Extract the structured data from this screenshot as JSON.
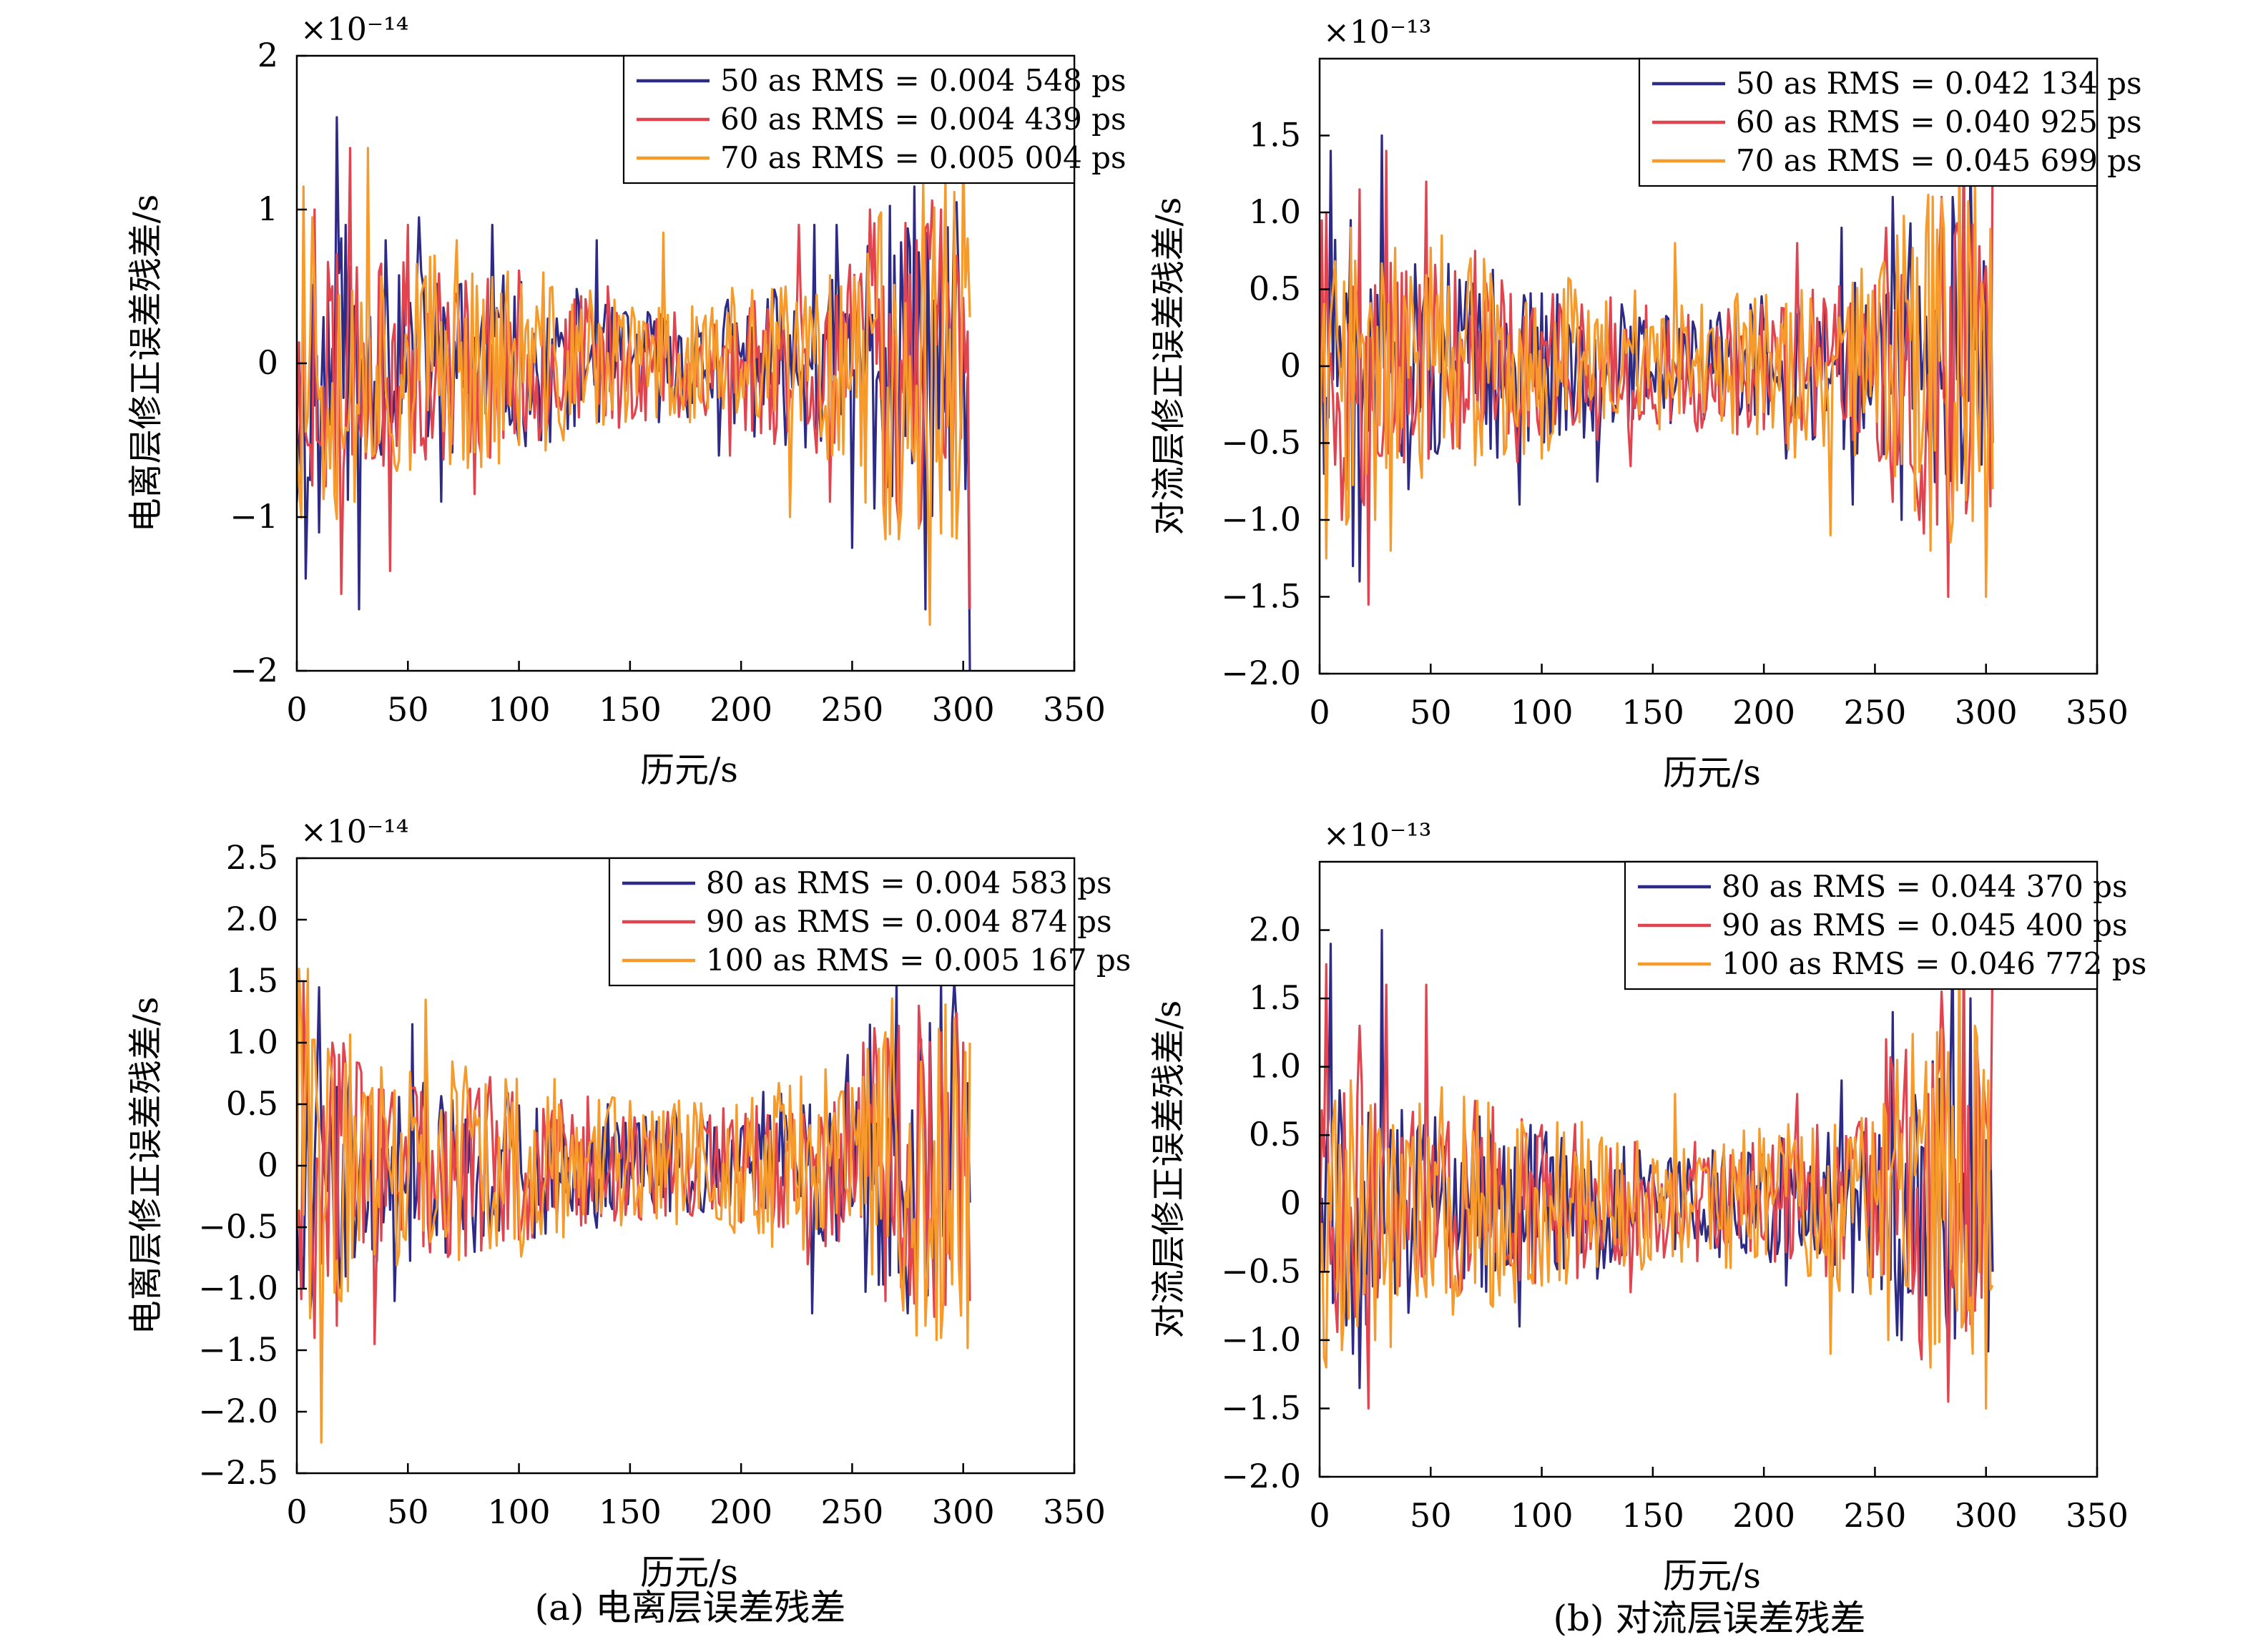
{
  "captions": {
    "a": "(a) 电离层误差残差",
    "b": "(b) 对流层误差残差"
  },
  "colors": {
    "navy": "#2e2b86",
    "red": "#e0444f",
    "orange": "#f59a2b"
  },
  "chart_data": [
    {
      "id": "tl",
      "type": "line",
      "title": "",
      "xlabel": "历元/s",
      "ylabel": "电离层修正误差残差/s",
      "exponent_label": "×10⁻¹⁴",
      "xlim": [
        0,
        350
      ],
      "ylim": [
        -2,
        2
      ],
      "xticks": [
        0,
        50,
        100,
        150,
        200,
        250,
        300,
        350
      ],
      "xtick_labels": [
        "0",
        "50",
        "100",
        "150",
        "200",
        "250",
        "300",
        "350"
      ],
      "yticks": [
        -2,
        -1,
        0,
        1,
        2
      ],
      "ytick_labels": [
        "−2",
        "−1",
        "0",
        "1",
        "2"
      ],
      "legend_position": "top-right",
      "grid": false,
      "series": [
        {
          "name": "50 as RMS = 0.004 548 ps",
          "color": "#2e2b86",
          "seed": 11,
          "x_range": [
            0,
            303
          ],
          "amplitude": 0.3,
          "points": [
            [
              0,
              -0.9
            ],
            [
              4,
              -1.4
            ],
            [
              10,
              -1.1
            ],
            [
              18,
              1.6
            ],
            [
              22,
              0.9
            ],
            [
              28,
              -1.6
            ],
            [
              40,
              0.8
            ],
            [
              55,
              0.95
            ],
            [
              65,
              -0.9
            ],
            [
              88,
              0.9
            ],
            [
              110,
              -0.5
            ],
            [
              135,
              0.8
            ],
            [
              190,
              -0.6
            ],
            [
              233,
              0.9
            ],
            [
              243,
              0.9
            ],
            [
              250,
              -1.2
            ],
            [
              278,
              1.15
            ],
            [
              283,
              -1.6
            ],
            [
              303,
              -2.0
            ]
          ]
        },
        {
          "name": "60 as RMS = 0.004 439 ps",
          "color": "#e0444f",
          "seed": 23,
          "x_range": [
            0,
            303
          ],
          "amplitude": 0.32,
          "points": [
            [
              2,
              -0.8
            ],
            [
              8,
              1.0
            ],
            [
              13,
              -0.8
            ],
            [
              20,
              -1.5
            ],
            [
              24,
              1.4
            ],
            [
              42,
              -1.35
            ],
            [
              50,
              0.9
            ],
            [
              80,
              -0.85
            ],
            [
              140,
              0.5
            ],
            [
              195,
              -0.6
            ],
            [
              226,
              0.9
            ],
            [
              240,
              -0.9
            ],
            [
              258,
              1.0
            ],
            [
              279,
              0.8
            ],
            [
              290,
              1.0
            ],
            [
              303,
              -1.6
            ]
          ]
        },
        {
          "name": "70 as RMS = 0.005 004 ps",
          "color": "#f59a2b",
          "seed": 37,
          "x_range": [
            0,
            303
          ],
          "amplitude": 0.35,
          "points": [
            [
              3,
              1.15
            ],
            [
              7,
              0.95
            ],
            [
              26,
              -0.9
            ],
            [
              32,
              1.4
            ],
            [
              45,
              -0.7
            ],
            [
              72,
              0.8
            ],
            [
              120,
              -0.5
            ],
            [
              165,
              0.85
            ],
            [
              222,
              -1.0
            ],
            [
              245,
              0.5
            ],
            [
              262,
              0.95
            ],
            [
              285,
              -1.7
            ],
            [
              292,
              1.2
            ],
            [
              300,
              1.4
            ],
            [
              303,
              0.3
            ]
          ]
        }
      ]
    },
    {
      "id": "tr",
      "type": "line",
      "title": "",
      "xlabel": "历元/s",
      "ylabel": "对流层修正误差残差/s",
      "exponent_label": "×10⁻¹³",
      "xlim": [
        0,
        350
      ],
      "ylim": [
        -2.0,
        2.0
      ],
      "xticks": [
        0,
        50,
        100,
        150,
        200,
        250,
        300,
        350
      ],
      "xtick_labels": [
        "0",
        "50",
        "100",
        "150",
        "200",
        "250",
        "300",
        "350"
      ],
      "yticks": [
        -2.0,
        -1.5,
        -1.0,
        -0.5,
        0,
        0.5,
        1.0,
        1.5
      ],
      "ytick_labels": [
        "−2.0",
        "−1.5",
        "−1.0",
        "−0.5",
        "0",
        "0.5",
        "1.0",
        "1.5"
      ],
      "legend_position": "top-right",
      "grid": false,
      "series": [
        {
          "name": "50 as RMS = 0.042 134 ps",
          "color": "#2e2b86",
          "seed": 51,
          "x_range": [
            0,
            303
          ],
          "amplitude": 0.3,
          "points": [
            [
              2,
              -0.7
            ],
            [
              5,
              1.4
            ],
            [
              15,
              -1.3
            ],
            [
              18,
              -1.4
            ],
            [
              28,
              1.5
            ],
            [
              40,
              -0.8
            ],
            [
              90,
              -0.9
            ],
            [
              125,
              -0.75
            ],
            [
              210,
              -0.6
            ],
            [
              235,
              0.9
            ],
            [
              240,
              -0.9
            ],
            [
              258,
              1.1
            ],
            [
              262,
              -1.0
            ],
            [
              285,
              1.1
            ],
            [
              293,
              1.35
            ],
            [
              303,
              -0.5
            ]
          ]
        },
        {
          "name": "60 as RMS = 0.040 925 ps",
          "color": "#e0444f",
          "seed": 63,
          "x_range": [
            0,
            303
          ],
          "amplitude": 0.32,
          "points": [
            [
              3,
              1.0
            ],
            [
              10,
              -1.0
            ],
            [
              18,
              1.15
            ],
            [
              22,
              -1.55
            ],
            [
              30,
              1.4
            ],
            [
              48,
              1.2
            ],
            [
              70,
              0.75
            ],
            [
              140,
              -0.65
            ],
            [
              215,
              0.8
            ],
            [
              255,
              0.9
            ],
            [
              270,
              -1.0
            ],
            [
              280,
              1.1
            ],
            [
              283,
              -1.5
            ],
            [
              290,
              1.6
            ],
            [
              303,
              1.4
            ]
          ]
        },
        {
          "name": "70 as RMS = 0.045 699 ps",
          "color": "#f59a2b",
          "seed": 77,
          "x_range": [
            0,
            303
          ],
          "amplitude": 0.35,
          "points": [
            [
              3,
              -1.25
            ],
            [
              14,
              0.9
            ],
            [
              25,
              -1.0
            ],
            [
              32,
              -1.2
            ],
            [
              55,
              0.85
            ],
            [
              100,
              -0.6
            ],
            [
              160,
              0.8
            ],
            [
              230,
              -1.1
            ],
            [
              260,
              0.85
            ],
            [
              275,
              -1.2
            ],
            [
              288,
              1.4
            ],
            [
              295,
              1.2
            ],
            [
              300,
              -1.5
            ],
            [
              303,
              -0.8
            ]
          ]
        }
      ]
    },
    {
      "id": "bl",
      "type": "line",
      "title": "",
      "xlabel": "历元/s",
      "ylabel": "电离层修正误差残差/s",
      "exponent_label": "×10⁻¹⁴",
      "xlim": [
        0,
        350
      ],
      "ylim": [
        -2.5,
        2.5
      ],
      "xticks": [
        0,
        50,
        100,
        150,
        200,
        250,
        300,
        350
      ],
      "xtick_labels": [
        "0",
        "50",
        "100",
        "150",
        "200",
        "250",
        "300",
        "350"
      ],
      "yticks": [
        -2.5,
        -2.0,
        -1.5,
        -1.0,
        -0.5,
        0,
        0.5,
        1.0,
        1.5,
        2.0,
        2.5
      ],
      "ytick_labels": [
        "−2.5",
        "−2.0",
        "−1.5",
        "−1.0",
        "−0.5",
        "0",
        "0.5",
        "1.0",
        "1.5",
        "2.0",
        "2.5"
      ],
      "legend_position": "top-right",
      "grid": false,
      "series": [
        {
          "name": "80 as RMS = 0.004 583 ps",
          "color": "#2e2b86",
          "seed": 91,
          "x_range": [
            0,
            303
          ],
          "amplitude": 0.35,
          "points": [
            [
              2,
              -0.7
            ],
            [
              6,
              -1.2
            ],
            [
              10,
              1.45
            ],
            [
              22,
              -0.9
            ],
            [
              44,
              -1.1
            ],
            [
              52,
              1.15
            ],
            [
              80,
              -0.7
            ],
            [
              140,
              0.5
            ],
            [
              210,
              0.6
            ],
            [
              232,
              -1.2
            ],
            [
              248,
              0.9
            ],
            [
              270,
              1.5
            ],
            [
              275,
              -1.2
            ],
            [
              290,
              1.5
            ],
            [
              296,
              1.5
            ],
            [
              303,
              -0.3
            ]
          ]
        },
        {
          "name": "90 as RMS = 0.004 874 ps",
          "color": "#e0444f",
          "seed": 103,
          "x_range": [
            0,
            303
          ],
          "amplitude": 0.38,
          "points": [
            [
              3,
              1.5
            ],
            [
              8,
              -1.4
            ],
            [
              16,
              1.0
            ],
            [
              18,
              -1.3
            ],
            [
              35,
              -1.45
            ],
            [
              58,
              0.95
            ],
            [
              100,
              -0.6
            ],
            [
              150,
              0.5
            ],
            [
              230,
              -0.8
            ],
            [
              255,
              1.0
            ],
            [
              265,
              -1.1
            ],
            [
              280,
              1.3
            ],
            [
              288,
              -1.2
            ],
            [
              300,
              1.0
            ],
            [
              303,
              -1.1
            ]
          ]
        },
        {
          "name": "100 as RMS = 0.005 167 ps",
          "color": "#f59a2b",
          "seed": 117,
          "x_range": [
            0,
            303
          ],
          "amplitude": 0.42,
          "points": [
            [
              1,
              1.6
            ],
            [
              5,
              1.6
            ],
            [
              11,
              -2.25
            ],
            [
              14,
              0.95
            ],
            [
              38,
              0.8
            ],
            [
              58,
              1.35
            ],
            [
              90,
              -0.65
            ],
            [
              170,
              0.5
            ],
            [
              205,
              0.55
            ],
            [
              262,
              0.95
            ],
            [
              283,
              -1.3
            ],
            [
              290,
              -1.4
            ],
            [
              296,
              1.2
            ],
            [
              303,
              1.0
            ]
          ]
        }
      ]
    },
    {
      "id": "br",
      "type": "line",
      "title": "",
      "xlabel": "历元/s",
      "ylabel": "对流层修正误差残差/s",
      "exponent_label": "×10⁻¹³",
      "xlim": [
        0,
        350
      ],
      "ylim": [
        -2.0,
        2.5
      ],
      "xticks": [
        0,
        50,
        100,
        150,
        200,
        250,
        300,
        350
      ],
      "xtick_labels": [
        "0",
        "50",
        "100",
        "150",
        "200",
        "250",
        "300",
        "350"
      ],
      "yticks": [
        -2.0,
        -1.5,
        -1.0,
        -0.5,
        0,
        0.5,
        1.0,
        1.5,
        2.0
      ],
      "ytick_labels": [
        "−2.0",
        "−1.5",
        "−1.0",
        "−0.5",
        "0",
        "0.5",
        "1.0",
        "1.5",
        "2.0"
      ],
      "legend_position": "top-right",
      "grid": false,
      "series": [
        {
          "name": "80 as RMS = 0.044 370 ps",
          "color": "#2e2b86",
          "seed": 131,
          "x_range": [
            0,
            303
          ],
          "amplitude": 0.32,
          "points": [
            [
              2,
              -0.5
            ],
            [
              5,
              1.9
            ],
            [
              15,
              -1.1
            ],
            [
              18,
              -1.35
            ],
            [
              28,
              2.0
            ],
            [
              40,
              -0.8
            ],
            [
              90,
              -0.9
            ],
            [
              125,
              -0.55
            ],
            [
              210,
              -0.6
            ],
            [
              235,
              0.9
            ],
            [
              240,
              -0.65
            ],
            [
              258,
              1.4
            ],
            [
              262,
              -1.0
            ],
            [
              285,
              1.9
            ],
            [
              293,
              1.5
            ],
            [
              303,
              -0.5
            ]
          ]
        },
        {
          "name": "90 as RMS = 0.045 400 ps",
          "color": "#e0444f",
          "seed": 149,
          "x_range": [
            0,
            303
          ],
          "amplitude": 0.34,
          "points": [
            [
              3,
              1.75
            ],
            [
              10,
              -1.0
            ],
            [
              18,
              1.3
            ],
            [
              22,
              -1.5
            ],
            [
              30,
              1.6
            ],
            [
              48,
              1.6
            ],
            [
              70,
              0.75
            ],
            [
              140,
              -0.65
            ],
            [
              215,
              0.8
            ],
            [
              255,
              1.2
            ],
            [
              270,
              -1.0
            ],
            [
              280,
              1.55
            ],
            [
              283,
              -1.45
            ],
            [
              290,
              2.0
            ],
            [
              303,
              1.9
            ]
          ]
        },
        {
          "name": "100 as RMS = 0.046 772 ps",
          "color": "#f59a2b",
          "seed": 163,
          "x_range": [
            0,
            303
          ],
          "amplitude": 0.38,
          "points": [
            [
              3,
              -1.2
            ],
            [
              14,
              0.9
            ],
            [
              25,
              -1.0
            ],
            [
              32,
              -1.05
            ],
            [
              55,
              0.85
            ],
            [
              100,
              -0.6
            ],
            [
              160,
              0.8
            ],
            [
              230,
              -1.1
            ],
            [
              260,
              1.05
            ],
            [
              275,
              -1.2
            ],
            [
              288,
              2.0
            ],
            [
              295,
              1.3
            ],
            [
              300,
              -1.5
            ],
            [
              303,
              -0.6
            ]
          ]
        }
      ]
    }
  ]
}
